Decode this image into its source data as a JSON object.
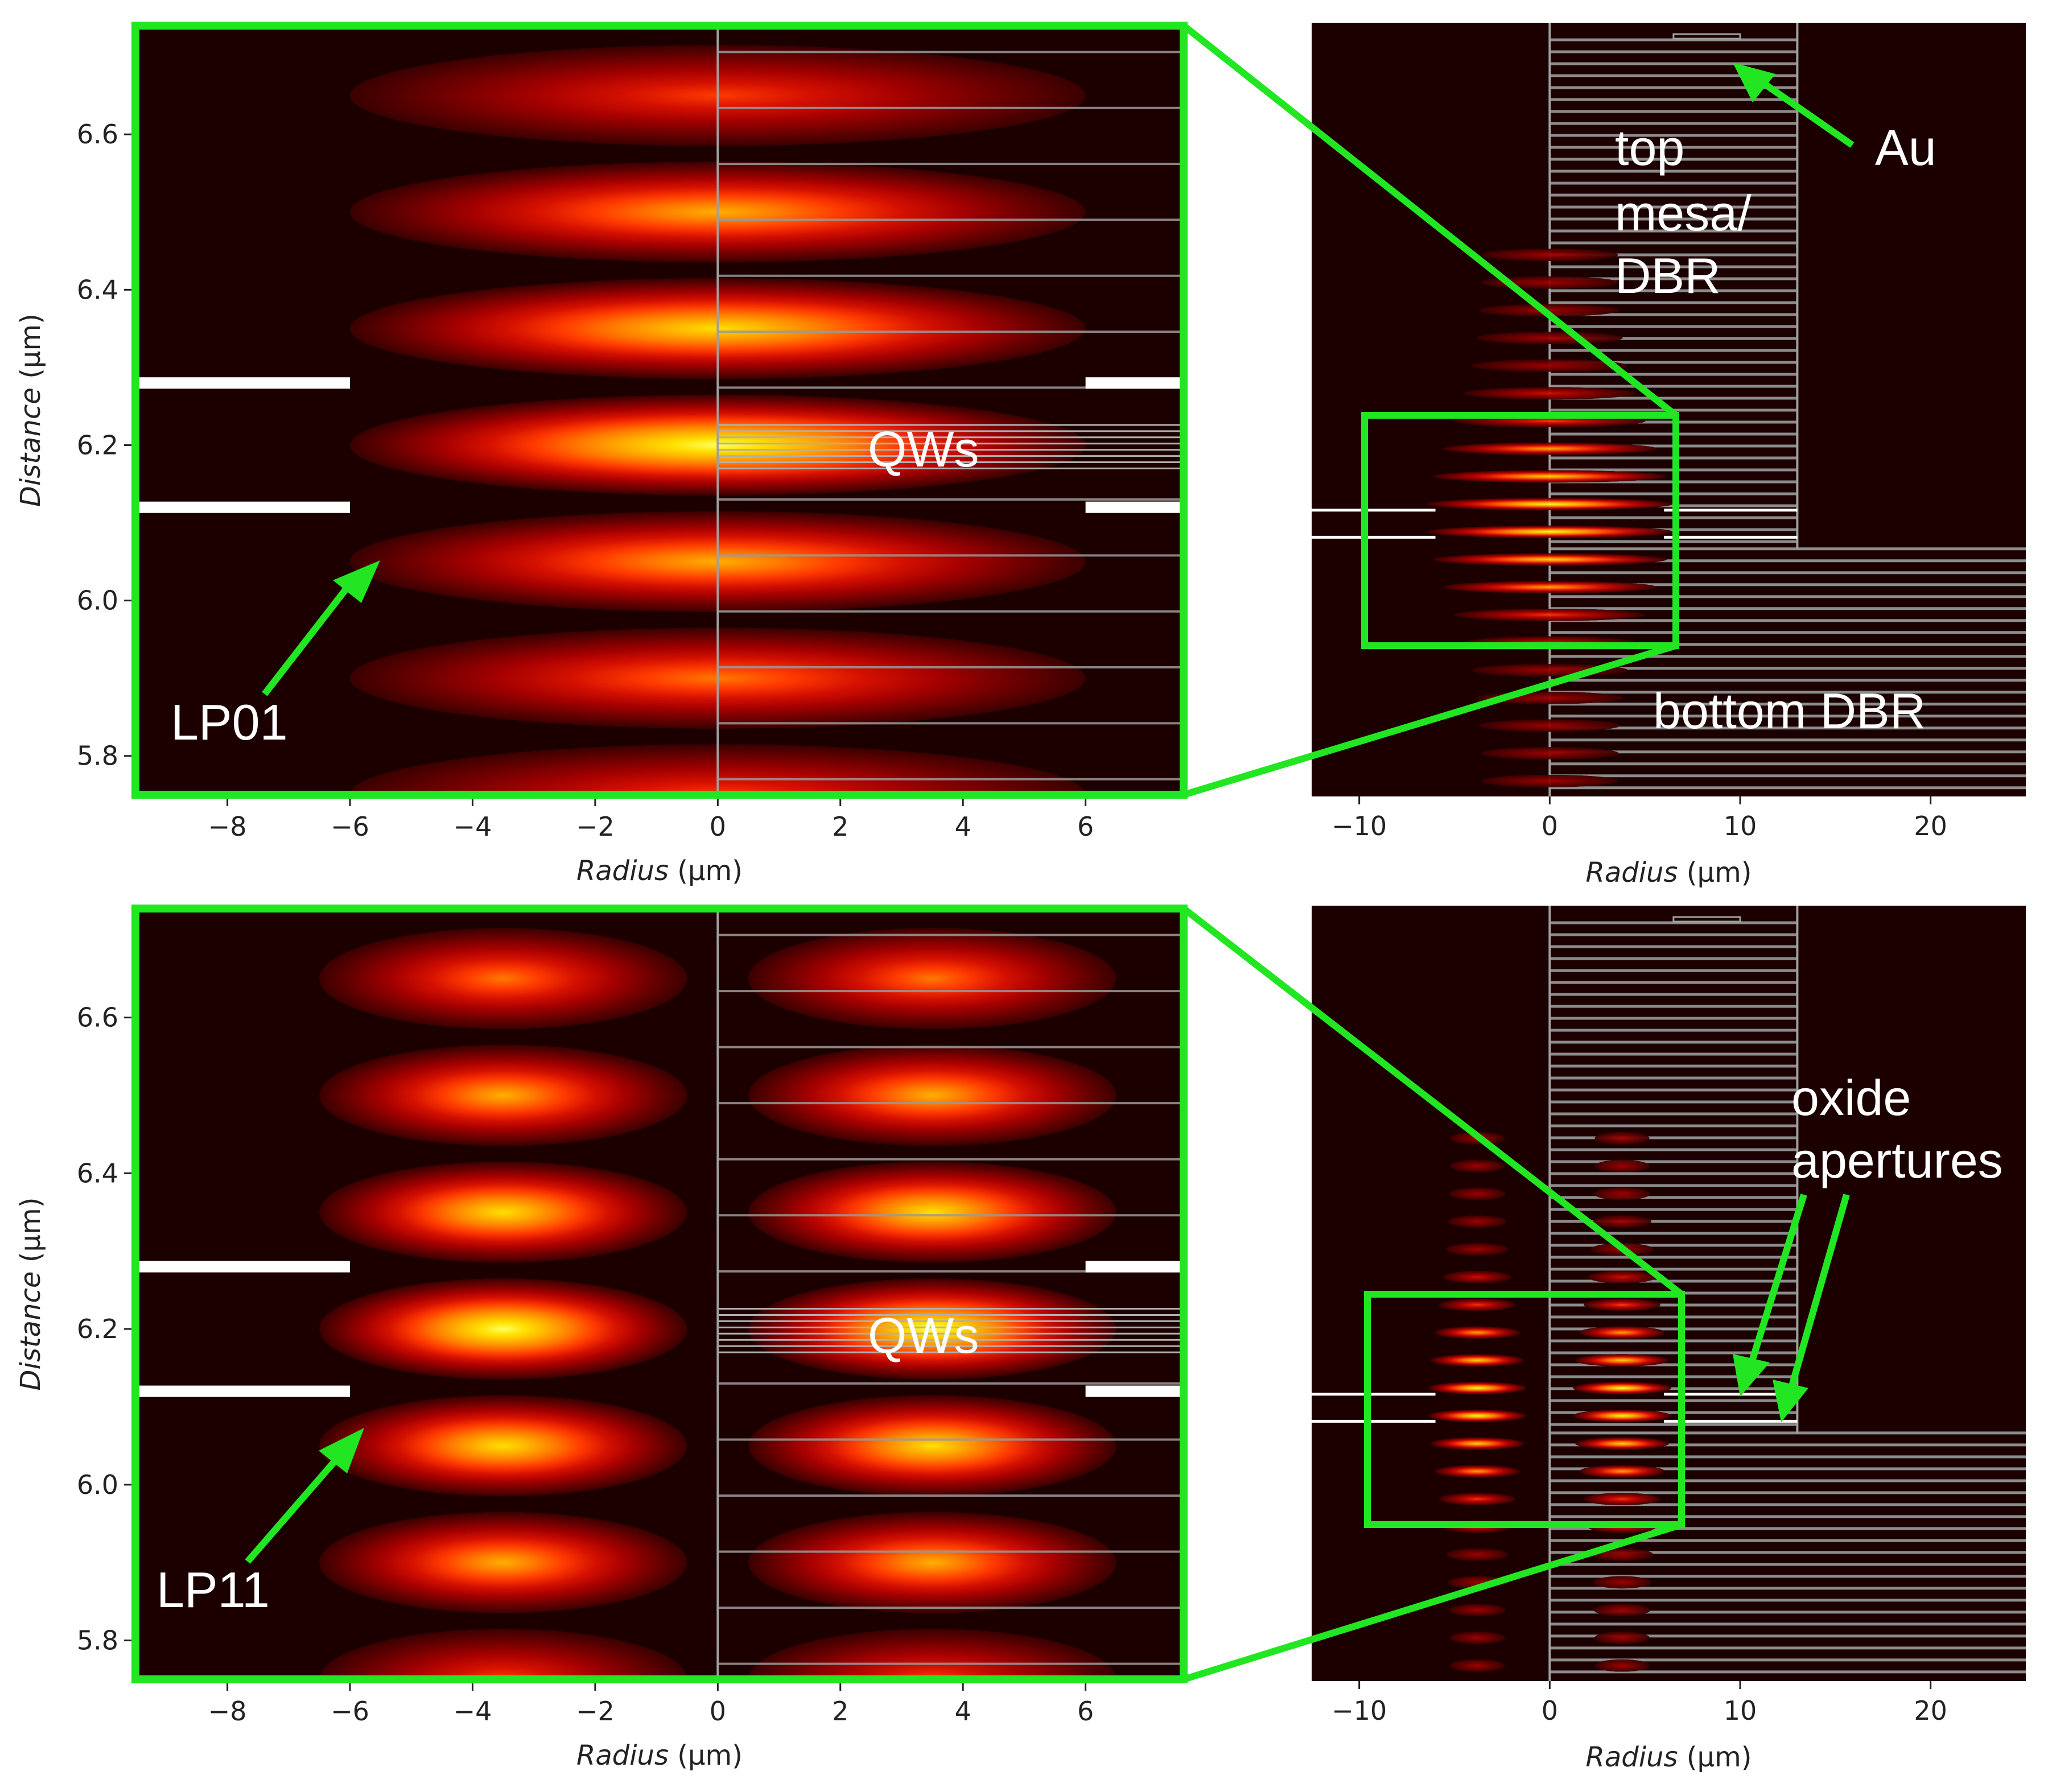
{
  "chart_data": [
    {
      "type": "heatmap",
      "panel": "top-left",
      "mode": "LP01",
      "xlabel_italic": "Radius",
      "xlabel_unit": " (μm)",
      "ylabel_italic": "Distance",
      "ylabel_unit": " (μm)",
      "xlim": [
        -9.5,
        7.6
      ],
      "ylim": [
        5.75,
        6.74
      ],
      "xticks": [
        -8,
        -6,
        -4,
        -2,
        0,
        2,
        4,
        6
      ],
      "xtick_labels": [
        "−8",
        "−6",
        "−4",
        "−2",
        "0",
        "2",
        "4",
        "6"
      ],
      "yticks": [
        5.8,
        6.0,
        6.2,
        6.4,
        6.6
      ],
      "ytick_labels": [
        "5.8",
        "6.0",
        "6.2",
        "6.4",
        "6.6"
      ],
      "lobe_centers_y": [
        5.75,
        5.9,
        6.05,
        6.2,
        6.35,
        6.5,
        6.65
      ],
      "lobe_peak": [
        0.45,
        0.62,
        0.8,
        0.95,
        0.9,
        0.72,
        0.55
      ],
      "lobe_x_center": 0,
      "oxide_aperture_y": [
        6.12,
        6.28
      ],
      "oxide_aperture_edge_x": 6,
      "qw_y": 6.2,
      "labels": {
        "mode": "LP01",
        "qw": "QWs"
      }
    },
    {
      "type": "heatmap",
      "panel": "top-right",
      "xlabel_italic": "Radius",
      "xlabel_unit": " (μm)",
      "xlim": [
        -12.5,
        25
      ],
      "xticks": [
        -10,
        0,
        10,
        20
      ],
      "xtick_labels": [
        "−10",
        "0",
        "10",
        "20"
      ],
      "labels": {
        "mesa": [
          "top",
          "mesa/",
          "DBR"
        ],
        "au": "Au",
        "bottom": "bottom DBR"
      }
    },
    {
      "type": "heatmap",
      "panel": "bottom-left",
      "mode": "LP11",
      "xlabel_italic": "Radius",
      "xlabel_unit": " (μm)",
      "ylabel_italic": "Distance",
      "ylabel_unit": " (μm)",
      "xlim": [
        -9.5,
        7.6
      ],
      "ylim": [
        5.75,
        6.74
      ],
      "xticks": [
        -8,
        -6,
        -4,
        -2,
        0,
        2,
        4,
        6
      ],
      "xtick_labels": [
        "−8",
        "−6",
        "−4",
        "−2",
        "0",
        "2",
        "4",
        "6"
      ],
      "yticks": [
        5.8,
        6.0,
        6.2,
        6.4,
        6.6
      ],
      "ytick_labels": [
        "5.8",
        "6.0",
        "6.2",
        "6.4",
        "6.6"
      ],
      "lobe_centers_y": [
        5.75,
        5.9,
        6.05,
        6.2,
        6.35,
        6.5,
        6.65
      ],
      "lobe_peak": [
        0.5,
        0.7,
        0.92,
        1.0,
        0.92,
        0.75,
        0.58
      ],
      "lobe_x_centers": [
        -3.5,
        3.5
      ],
      "oxide_aperture_y": [
        6.12,
        6.28
      ],
      "oxide_aperture_edge_x": 6,
      "qw_y": 6.2,
      "labels": {
        "mode": "LP11",
        "qw": "QWs"
      }
    },
    {
      "type": "heatmap",
      "panel": "bottom-right",
      "xlabel_italic": "Radius",
      "xlabel_unit": " (μm)",
      "xlim": [
        -12.5,
        25
      ],
      "xticks": [
        -10,
        0,
        10,
        20
      ],
      "xtick_labels": [
        "−10",
        "0",
        "10",
        "20"
      ],
      "labels": {
        "oxide": [
          "oxide",
          "apertures"
        ]
      }
    }
  ],
  "colors": {
    "background": "#1c0000",
    "zoom_frame": "#22e622",
    "annotation": "#ffffff",
    "colormap": [
      "#3a0000",
      "#6e0000",
      "#a50000",
      "#d41000",
      "#ff3a00",
      "#ff7a00",
      "#ffb000",
      "#ffe000",
      "#ffff60"
    ]
  }
}
